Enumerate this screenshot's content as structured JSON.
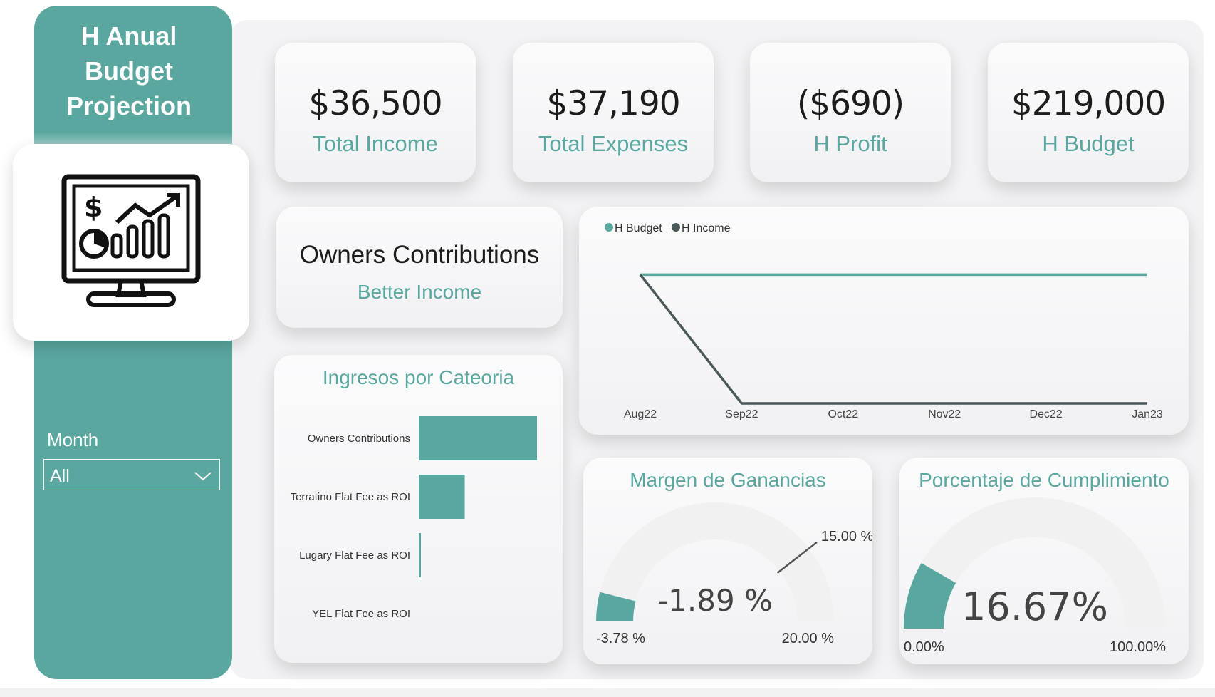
{
  "app": {
    "title": "H Anual Budget Projection"
  },
  "filter": {
    "label": "Month",
    "value": "All"
  },
  "kpis": [
    {
      "value": "$36,500",
      "label": "Total Income"
    },
    {
      "value": "$37,190",
      "label": "Total Expenses"
    },
    {
      "value": "($690)",
      "label": "H Profit"
    },
    {
      "value": "$219,000",
      "label": "H Budget"
    }
  ],
  "owners_card": {
    "title": "Owners Contributions",
    "subtitle": "Better Income"
  },
  "colors": {
    "accent": "#5aa7a0",
    "dark": "#4a5859",
    "text": "#1c1c1c",
    "track": "#f1f1f1"
  },
  "icons": {
    "logo": "monitor-analytics-icon",
    "dropdown": "chevron-down-icon"
  },
  "chart_data": [
    {
      "type": "bar",
      "title": "Ingresos por Cateoria",
      "categories": [
        "Owners Contributions",
        "Terratino Flat Fee as ROI",
        "Lugary Flat Fee as ROI",
        "YEL Flat Fee as ROI"
      ],
      "values": [
        18000,
        7000,
        300,
        0
      ],
      "orientation": "horizontal"
    },
    {
      "type": "line",
      "categories": [
        "Aug22",
        "Sep22",
        "Oct22",
        "Nov22",
        "Dec22",
        "Jan23"
      ],
      "series": [
        {
          "name": "H Budget",
          "values": [
            36500,
            36500,
            36500,
            36500,
            36500,
            36500
          ]
        },
        {
          "name": "H Income",
          "values": [
            36500,
            0,
            0,
            0,
            0,
            0
          ]
        }
      ],
      "ylim": [
        0,
        40000
      ],
      "legend": "top-left"
    },
    {
      "type": "gauge",
      "title": "Margen de Ganancias",
      "value": -1.89,
      "value_label": "-1.89 %",
      "min": -3.78,
      "min_label": "-3.78 %",
      "max": 20,
      "max_label": "20.00 %",
      "target": 15,
      "target_label": "15.00 %"
    },
    {
      "type": "gauge",
      "title": "Porcentaje de Cumplimiento",
      "value": 16.67,
      "value_label": "16.67%",
      "min": 0,
      "min_label": "0.00%",
      "max": 100,
      "max_label": "100.00%"
    }
  ]
}
